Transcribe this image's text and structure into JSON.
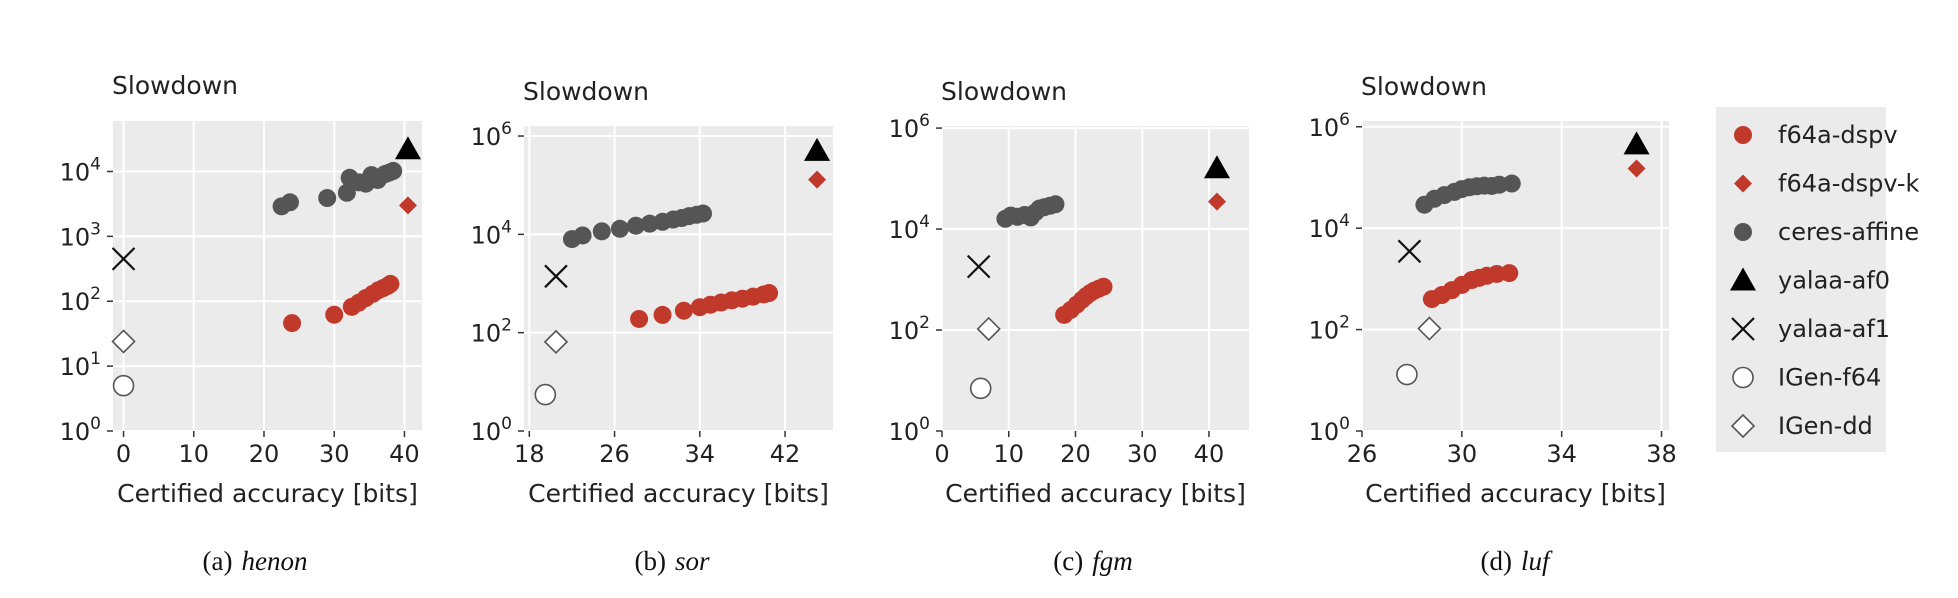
{
  "colors": {
    "panel_bg": "#ebebeb",
    "grid": "#ffffff",
    "f64a-dspv": "#c0392b",
    "f64a-dspv-k": "#c0392b",
    "ceres-affine": "#555555",
    "yalaa-af0": "#000000",
    "yalaa-af1": "#111111",
    "igen": "#555555",
    "legend_bg": "#ebebeb"
  },
  "legend": {
    "items": [
      {
        "label": "f64a-dspv",
        "marker": "circle-filled",
        "color": "#c0392b"
      },
      {
        "label": "f64a-dspv-k",
        "marker": "diamond-filled",
        "color": "#c0392b"
      },
      {
        "label": "ceres-affine",
        "marker": "circle-filled",
        "color": "#555555"
      },
      {
        "label": "yalaa-af0",
        "marker": "triangle-filled",
        "color": "#000000"
      },
      {
        "label": "yalaa-af1",
        "marker": "x",
        "color": "#111111"
      },
      {
        "label": "IGen-f64",
        "marker": "circle-open",
        "color": "#555555"
      },
      {
        "label": "IGen-dd",
        "marker": "diamond-open",
        "color": "#555555"
      }
    ]
  },
  "chart_data": [
    {
      "type": "scatter",
      "ylabel": "Slowdown",
      "xlabel": "Certified accuracy [bits]",
      "caption_prefix": "(a)",
      "caption_name": "henon",
      "xlim": [
        -1.5,
        42.5
      ],
      "xticks": [
        0,
        10,
        20,
        30,
        40
      ],
      "xtick_labels": [
        "0",
        "10",
        "20",
        "30",
        "40"
      ],
      "yscale": "log",
      "ylim": [
        1,
        60000
      ],
      "yticks": [
        1,
        10,
        100,
        1000,
        10000
      ],
      "ytick_labels": [
        [
          "10",
          "0"
        ],
        [
          "10",
          "1"
        ],
        [
          "10",
          "2"
        ],
        [
          "10",
          "3"
        ],
        [
          "10",
          "4"
        ]
      ],
      "series": [
        {
          "name": "f64a-dspv",
          "points": [
            [
              24,
              46
            ],
            [
              30,
              62
            ],
            [
              32.5,
              82
            ],
            [
              33.5,
              95
            ],
            [
              34.5,
              112
            ],
            [
              35.5,
              130
            ],
            [
              36.3,
              148
            ],
            [
              37,
              160
            ],
            [
              37.6,
              172
            ],
            [
              38,
              185
            ]
          ]
        },
        {
          "name": "f64a-dspv-k",
          "points": [
            [
              40.5,
              3000
            ]
          ]
        },
        {
          "name": "ceres-affine",
          "points": [
            [
              22.5,
              2900
            ],
            [
              23.7,
              3350
            ],
            [
              29,
              3900
            ],
            [
              31.8,
              4700
            ],
            [
              32.2,
              8000
            ],
            [
              33.5,
              6800
            ],
            [
              34.5,
              6500
            ],
            [
              35.3,
              8800
            ],
            [
              36.2,
              7400
            ],
            [
              37.2,
              9100
            ],
            [
              37.8,
              9600
            ],
            [
              38.4,
              10200
            ]
          ]
        },
        {
          "name": "yalaa-af0",
          "points": [
            [
              40.5,
              22000
            ]
          ]
        },
        {
          "name": "yalaa-af1",
          "points": [
            [
              0,
              450
            ]
          ]
        },
        {
          "name": "IGen-f64",
          "points": [
            [
              0,
              5
            ]
          ]
        },
        {
          "name": "IGen-dd",
          "points": [
            [
              0,
              24
            ]
          ]
        }
      ]
    },
    {
      "type": "scatter",
      "ylabel": "Slowdown",
      "xlabel": "Certified accuracy [bits]",
      "caption_prefix": "(b)",
      "caption_name": "sor",
      "xlim": [
        17.5,
        46.5
      ],
      "xticks": [
        18,
        26,
        34,
        42
      ],
      "xtick_labels": [
        "18",
        "26",
        "34",
        "42"
      ],
      "yscale": "log",
      "ylim": [
        1,
        1600000
      ],
      "yticks": [
        1,
        100,
        10000,
        1000000
      ],
      "ytick_labels": [
        [
          "10",
          "0"
        ],
        [
          "10",
          "2"
        ],
        [
          "10",
          "4"
        ],
        [
          "10",
          "6"
        ]
      ],
      "series": [
        {
          "name": "f64a-dspv",
          "points": [
            [
              28.3,
              190
            ],
            [
              30.5,
              230
            ],
            [
              32.5,
              280
            ],
            [
              34,
              330
            ],
            [
              35,
              370
            ],
            [
              36,
              410
            ],
            [
              37,
              455
            ],
            [
              38,
              490
            ],
            [
              39,
              540
            ],
            [
              40,
              600
            ],
            [
              40.5,
              640
            ]
          ]
        },
        {
          "name": "f64a-dspv-k",
          "points": [
            [
              45,
              130000
            ]
          ]
        },
        {
          "name": "ceres-affine",
          "points": [
            [
              22,
              8000
            ],
            [
              23,
              9500
            ],
            [
              24.8,
              11500
            ],
            [
              26.5,
              13000
            ],
            [
              28,
              15000
            ],
            [
              29.3,
              16500
            ],
            [
              30.5,
              18000
            ],
            [
              31.5,
              20000
            ],
            [
              32.3,
              21500
            ],
            [
              33,
              23500
            ],
            [
              33.7,
              25000
            ],
            [
              34.3,
              26500
            ]
          ]
        },
        {
          "name": "yalaa-af0",
          "points": [
            [
              45,
              500000
            ]
          ]
        },
        {
          "name": "yalaa-af1",
          "points": [
            [
              20.5,
              1400
            ]
          ]
        },
        {
          "name": "IGen-f64",
          "points": [
            [
              19.5,
              5.5
            ]
          ]
        },
        {
          "name": "IGen-dd",
          "points": [
            [
              20.5,
              65
            ]
          ]
        }
      ]
    },
    {
      "type": "scatter",
      "ylabel": "Slowdown",
      "xlabel": "Certified accuracy [bits]",
      "caption_prefix": "(c)",
      "caption_name": "fgm",
      "xlim": [
        0,
        46
      ],
      "xticks": [
        0,
        10,
        20,
        30,
        40
      ],
      "xtick_labels": [
        "0",
        "10",
        "20",
        "30",
        "40"
      ],
      "yscale": "log",
      "ylim": [
        1,
        1100000
      ],
      "yticks": [
        1,
        100,
        10000,
        1000000
      ],
      "ytick_labels": [
        [
          "10",
          "0"
        ],
        [
          "10",
          "2"
        ],
        [
          "10",
          "4"
        ],
        [
          "10",
          "6"
        ]
      ],
      "series": [
        {
          "name": "f64a-dspv",
          "points": [
            [
              18.3,
              200
            ],
            [
              19.3,
              250
            ],
            [
              20.2,
              320
            ],
            [
              21,
              400
            ],
            [
              21.6,
              470
            ],
            [
              22.2,
              540
            ],
            [
              22.8,
              600
            ],
            [
              23.5,
              660
            ],
            [
              24.2,
              720
            ]
          ]
        },
        {
          "name": "f64a-dspv-k",
          "points": [
            [
              41.2,
              35000
            ]
          ]
        },
        {
          "name": "ceres-affine",
          "points": [
            [
              9.5,
              16000
            ],
            [
              10.3,
              18500
            ],
            [
              11.3,
              17500
            ],
            [
              12.4,
              19000
            ],
            [
              13.3,
              17000
            ],
            [
              14,
              21500
            ],
            [
              14.6,
              25500
            ],
            [
              15.3,
              27000
            ],
            [
              16.2,
              29000
            ],
            [
              17,
              31000
            ]
          ]
        },
        {
          "name": "yalaa-af0",
          "points": [
            [
              41.2,
              160000
            ]
          ]
        },
        {
          "name": "yalaa-af1",
          "points": [
            [
              5.5,
              1800
            ]
          ]
        },
        {
          "name": "IGen-f64",
          "points": [
            [
              5.8,
              7
            ]
          ]
        },
        {
          "name": "IGen-dd",
          "points": [
            [
              7,
              105
            ]
          ]
        }
      ]
    },
    {
      "type": "scatter",
      "ylabel": "Slowdown",
      "xlabel": "Certified accuracy [bits]",
      "caption_prefix": "(d)",
      "caption_name": "luf",
      "xlim": [
        26,
        38.3
      ],
      "xticks": [
        26,
        30,
        34,
        38
      ],
      "xtick_labels": [
        "26",
        "30",
        "34",
        "38"
      ],
      "yscale": "log",
      "ylim": [
        1,
        1300000
      ],
      "yticks": [
        1,
        100,
        10000,
        1000000
      ],
      "ytick_labels": [
        [
          "10",
          "0"
        ],
        [
          "10",
          "2"
        ],
        [
          "10",
          "4"
        ],
        [
          "10",
          "6"
        ]
      ],
      "series": [
        {
          "name": "f64a-dspv",
          "points": [
            [
              28.8,
              400
            ],
            [
              29.2,
              480
            ],
            [
              29.6,
              600
            ],
            [
              30,
              760
            ],
            [
              30.4,
              950
            ],
            [
              30.7,
              1050
            ],
            [
              31,
              1150
            ],
            [
              31.4,
              1250
            ],
            [
              31.9,
              1300
            ]
          ]
        },
        {
          "name": "f64a-dspv-k",
          "points": [
            [
              37,
              150000
            ]
          ]
        },
        {
          "name": "ceres-affine",
          "points": [
            [
              28.5,
              29000
            ],
            [
              28.9,
              38000
            ],
            [
              29.3,
              45000
            ],
            [
              29.7,
              52000
            ],
            [
              30,
              59000
            ],
            [
              30.3,
              64000
            ],
            [
              30.6,
              67000
            ],
            [
              30.9,
              69000
            ],
            [
              31.2,
              68000
            ],
            [
              31.5,
              72000
            ],
            [
              32,
              76000
            ]
          ]
        },
        {
          "name": "yalaa-af0",
          "points": [
            [
              37,
              450000
            ]
          ]
        },
        {
          "name": "yalaa-af1",
          "points": [
            [
              27.9,
              3500
            ]
          ]
        },
        {
          "name": "IGen-f64",
          "points": [
            [
              27.8,
              13
            ]
          ]
        },
        {
          "name": "IGen-dd",
          "points": [
            [
              28.7,
              105
            ]
          ]
        }
      ]
    }
  ]
}
